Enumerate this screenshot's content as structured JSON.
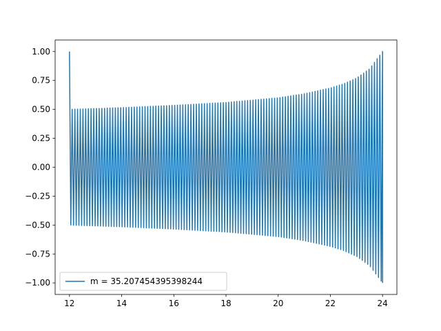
{
  "chart_data": {
    "type": "line",
    "title": "",
    "xlabel": "",
    "ylabel": "",
    "xlim": [
      11.45,
      24.55
    ],
    "ylim": [
      -1.1,
      1.1
    ],
    "x_ticks": [
      12,
      14,
      16,
      18,
      20,
      22,
      24
    ],
    "x_tick_labels": [
      "12",
      "14",
      "16",
      "18",
      "20",
      "22",
      "24"
    ],
    "y_ticks": [
      -1.0,
      -0.75,
      -0.5,
      -0.25,
      0.0,
      0.25,
      0.5,
      0.75,
      1.0
    ],
    "y_tick_labels": [
      "−1.00",
      "−0.75",
      "−0.50",
      "−0.25",
      "0.00",
      "0.25",
      "0.50",
      "0.75",
      "1.00"
    ],
    "grid": false,
    "legend_position": "lower-left",
    "series": [
      {
        "name": "m = 35.207454395398244",
        "color": "#1f77b4",
        "x_range": [
          12,
          24
        ],
        "cycles": 116,
        "start_value": 1.0,
        "envelope": [
          {
            "x": 12.0,
            "amplitude": 0.5
          },
          {
            "x": 14.0,
            "amplitude": 0.515
          },
          {
            "x": 16.0,
            "amplitude": 0.535
          },
          {
            "x": 18.0,
            "amplitude": 0.56
          },
          {
            "x": 20.0,
            "amplitude": 0.6
          },
          {
            "x": 21.0,
            "amplitude": 0.635
          },
          {
            "x": 22.0,
            "amplitude": 0.685
          },
          {
            "x": 22.5,
            "amplitude": 0.72
          },
          {
            "x": 23.0,
            "amplitude": 0.77
          },
          {
            "x": 23.5,
            "amplitude": 0.85
          },
          {
            "x": 24.0,
            "amplitude": 1.0
          }
        ]
      }
    ]
  }
}
